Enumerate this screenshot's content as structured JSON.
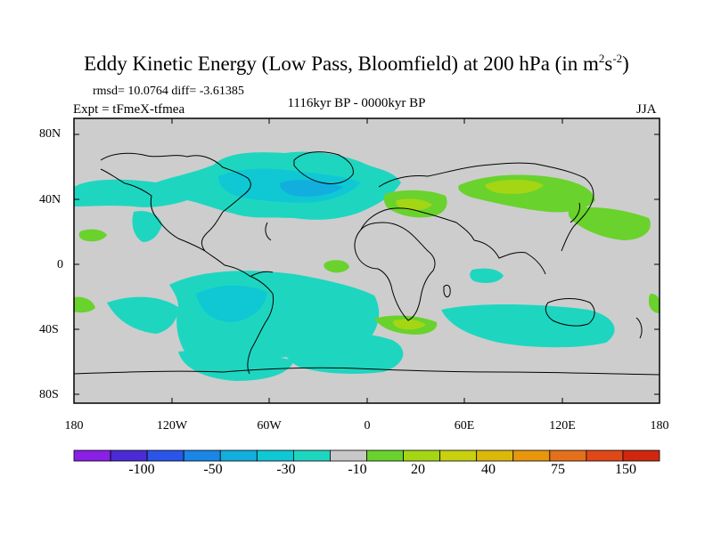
{
  "title": {
    "main": "Eddy Kinetic Energy (Low Pass, Bloomfield) at 200 hPa (in m",
    "sup1": "2",
    "mid": "s",
    "sup2": "-2",
    "close": ")"
  },
  "stats": "rmsd= 10.0764 diff= -3.61385",
  "experiment": "Expt = tFmeX-tfmea",
  "period": "1116kyr BP - 0000kyr BP",
  "season": "JJA",
  "y_ticks": [
    "80N",
    "40N",
    "0",
    "40S",
    "80S"
  ],
  "x_ticks": [
    "180",
    "120W",
    "60W",
    "0",
    "60E",
    "120E",
    "180"
  ],
  "colorbar": {
    "colors": [
      "#8a1fe6",
      "#4b2bd6",
      "#2a55e8",
      "#1a86e6",
      "#12aede",
      "#0fc8d4",
      "#1ed6c0",
      "#c8c8c8",
      "#6ad22c",
      "#a4d614",
      "#c8d010",
      "#dcb80a",
      "#e8960c",
      "#e4701c",
      "#e04818",
      "#d02810"
    ],
    "labels": [
      "-100",
      "-50",
      "-30",
      "-10",
      "20",
      "40",
      "75",
      "150"
    ]
  },
  "map": {
    "background": "#cdcdcd",
    "colors": {
      "neg_light": "#1ed6c0",
      "neg_mid": "#0fc8d4",
      "neg_dark": "#12aede",
      "pos_light": "#6ad22c",
      "pos_mid": "#a4d614"
    }
  }
}
